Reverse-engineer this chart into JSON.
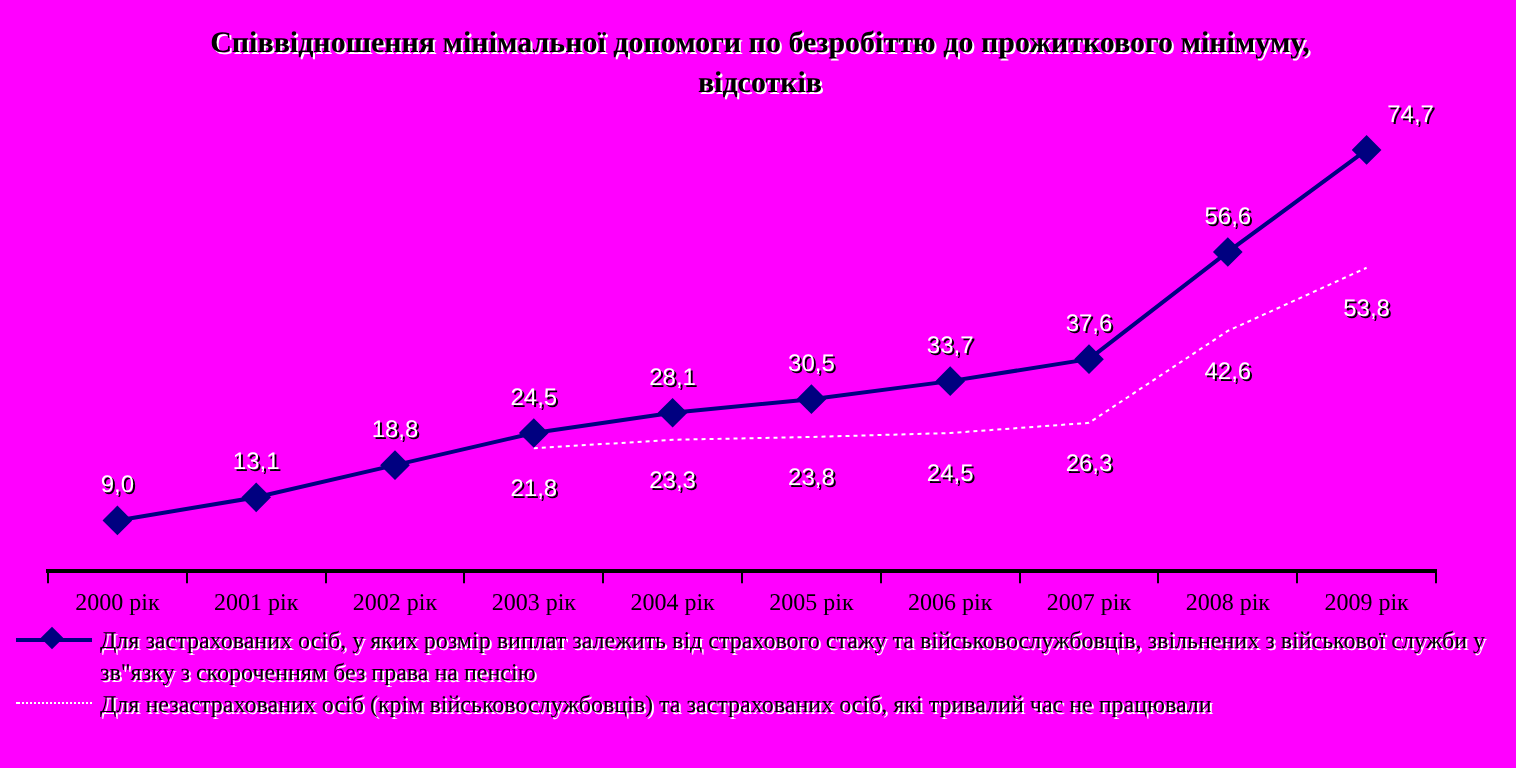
{
  "chart_data": {
    "type": "line",
    "title": "Співвідношення мінімальної допомоги по безробіттю до прожиткового мінімуму, відсотків",
    "categories": [
      "2000 рік",
      "2001 рік",
      "2002 рік",
      "2003 рік",
      "2004 рік",
      "2005 рік",
      "2006 рік",
      "2007 рік",
      "2008 рік",
      "2009 рік"
    ],
    "series": [
      {
        "name": "Для застрахованих осіб, у яких розмір виплат залежить від страхового стажу та військовослужбовців, звільнених з військової служби у зв\"язку з скороченням без права на пенсію",
        "color": "#000080",
        "marker": "diamond",
        "line_style": "solid",
        "values": [
          9.0,
          13.1,
          18.8,
          24.5,
          28.1,
          30.5,
          33.7,
          37.6,
          56.6,
          74.7
        ],
        "value_labels": [
          "9,0",
          "13,1",
          "18,8",
          "24,5",
          "28,1",
          "30,5",
          "33,7",
          "37,6",
          "56,6",
          "74,7"
        ]
      },
      {
        "name": "Для незастрахованих осіб (крім військовослужбовців) та застрахованих осіб, які тривалий час не працювали",
        "color": "#ffffff",
        "marker": "none",
        "line_style": "dotted",
        "values": [
          null,
          null,
          null,
          21.8,
          23.3,
          23.8,
          24.5,
          26.3,
          42.6,
          53.8
        ],
        "value_labels": [
          null,
          null,
          null,
          "21,8",
          "23,3",
          "23,8",
          "24,5",
          "26,3",
          "42,6",
          "53,8"
        ]
      }
    ],
    "grid": false,
    "legend": "bottom"
  }
}
